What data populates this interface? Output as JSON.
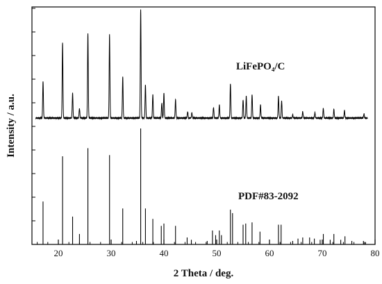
{
  "chart_data": {
    "type": "line",
    "xlabel": "2 Theta / deg.",
    "ylabel": "Intensity / a.u.",
    "xlim": [
      15,
      80
    ],
    "x_ticks": [
      20,
      30,
      40,
      50,
      60,
      70,
      80
    ],
    "y_ticks_shown": false,
    "grid": false,
    "annotations": {
      "top": "LiFePO₄/C",
      "bottom": "PDF#83-2092"
    },
    "series": [
      {
        "name": "LiFePO₄/C",
        "peaks": [
          [
            17.1,
            0.34
          ],
          [
            20.8,
            0.7
          ],
          [
            22.7,
            0.23
          ],
          [
            24.0,
            0.09
          ],
          [
            25.6,
            0.78
          ],
          [
            29.7,
            0.77
          ],
          [
            32.2,
            0.38
          ],
          [
            35.6,
            1.0
          ],
          [
            36.5,
            0.31
          ],
          [
            37.9,
            0.22
          ],
          [
            39.6,
            0.14
          ],
          [
            40.0,
            0.23
          ],
          [
            42.2,
            0.17
          ],
          [
            44.5,
            0.06
          ],
          [
            45.3,
            0.05
          ],
          [
            49.4,
            0.1
          ],
          [
            50.5,
            0.12
          ],
          [
            52.6,
            0.32
          ],
          [
            55.0,
            0.17
          ],
          [
            55.6,
            0.2
          ],
          [
            56.7,
            0.22
          ],
          [
            58.3,
            0.12
          ],
          [
            61.7,
            0.2
          ],
          [
            62.3,
            0.16
          ],
          [
            64.4,
            0.03
          ],
          [
            66.3,
            0.06
          ],
          [
            68.6,
            0.05
          ],
          [
            70.2,
            0.09
          ],
          [
            72.2,
            0.08
          ],
          [
            74.2,
            0.07
          ],
          [
            77.9,
            0.04
          ]
        ]
      },
      {
        "name": "PDF#83-2092",
        "peaks": [
          [
            17.1,
            0.37
          ],
          [
            20.8,
            0.76
          ],
          [
            22.7,
            0.24
          ],
          [
            24.0,
            0.09
          ],
          [
            25.6,
            0.83
          ],
          [
            29.7,
            0.77
          ],
          [
            32.2,
            0.31
          ],
          [
            34.8,
            0.03
          ],
          [
            35.6,
            1.0
          ],
          [
            36.5,
            0.31
          ],
          [
            37.9,
            0.22
          ],
          [
            39.5,
            0.16
          ],
          [
            40.0,
            0.18
          ],
          [
            42.2,
            0.16
          ],
          [
            44.4,
            0.06
          ],
          [
            45.2,
            0.04
          ],
          [
            48.2,
            0.03
          ],
          [
            49.2,
            0.12
          ],
          [
            49.8,
            0.08
          ],
          [
            50.5,
            0.12
          ],
          [
            50.9,
            0.08
          ],
          [
            52.6,
            0.3
          ],
          [
            53.0,
            0.27
          ],
          [
            55.0,
            0.17
          ],
          [
            55.5,
            0.18
          ],
          [
            56.7,
            0.19
          ],
          [
            58.2,
            0.11
          ],
          [
            61.7,
            0.17
          ],
          [
            62.2,
            0.17
          ],
          [
            64.4,
            0.03
          ],
          [
            65.4,
            0.05
          ],
          [
            66.3,
            0.06
          ],
          [
            67.6,
            0.06
          ],
          [
            68.5,
            0.05
          ],
          [
            69.6,
            0.04
          ],
          [
            70.2,
            0.09
          ],
          [
            71.5,
            0.04
          ],
          [
            72.2,
            0.09
          ],
          [
            73.5,
            0.04
          ],
          [
            74.3,
            0.07
          ],
          [
            75.6,
            0.03
          ],
          [
            77.8,
            0.03
          ],
          [
            78.2,
            0.02
          ]
        ]
      }
    ]
  }
}
